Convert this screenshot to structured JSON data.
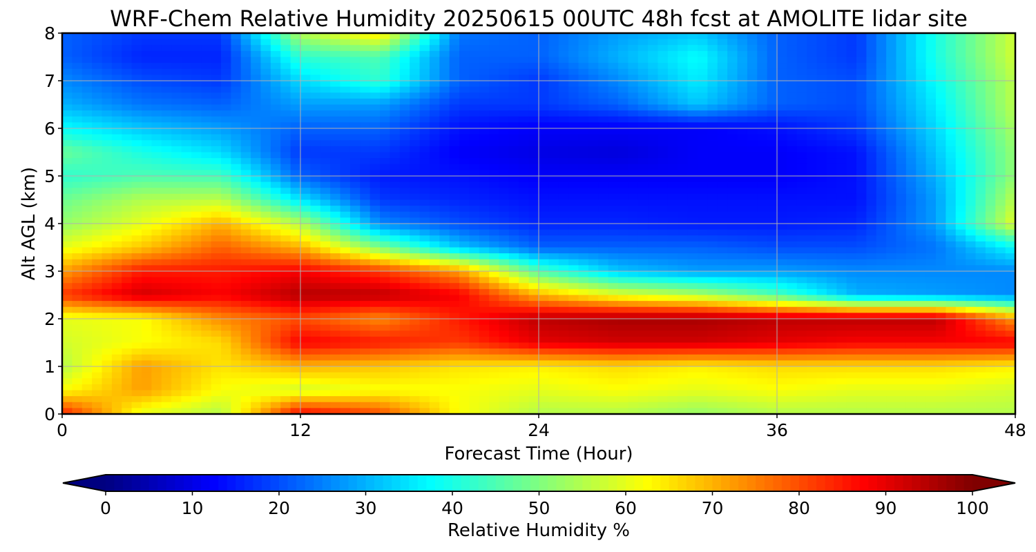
{
  "chart_data": {
    "type": "heatmap",
    "title": "WRF-Chem Relative Humidity 20250615 00UTC 48h fcst at AMOLITE lidar site",
    "xlabel": "Forecast Time (Hour)",
    "ylabel": "Alt AGL (km)",
    "xlim": [
      0,
      48
    ],
    "ylim": [
      0,
      8
    ],
    "xticks": [
      0,
      12,
      24,
      36,
      48
    ],
    "yticks": [
      0,
      1,
      2,
      3,
      4,
      5,
      6,
      7,
      8
    ],
    "grid": true,
    "colormap": "jet",
    "colorbar": {
      "label": "Relative Humidity %",
      "min": 0,
      "max": 100,
      "ticks": [
        0,
        10,
        20,
        30,
        40,
        50,
        60,
        70,
        80,
        90,
        100
      ],
      "extend": "both",
      "orientation": "horizontal"
    },
    "x": [
      0,
      4,
      8,
      12,
      16,
      20,
      24,
      28,
      32,
      36,
      40,
      44,
      48
    ],
    "y": [
      0,
      0.5,
      1,
      1.5,
      2,
      2.5,
      3,
      3.5,
      4,
      4.5,
      5,
      5.5,
      6,
      6.5,
      7,
      7.5,
      8
    ],
    "z": [
      [
        85,
        60,
        55,
        88,
        80,
        62,
        55,
        55,
        52,
        55,
        55,
        55,
        55
      ],
      [
        62,
        72,
        62,
        58,
        62,
        62,
        60,
        62,
        60,
        62,
        60,
        60,
        58
      ],
      [
        55,
        72,
        65,
        70,
        68,
        65,
        64,
        66,
        64,
        66,
        66,
        66,
        64
      ],
      [
        58,
        62,
        66,
        88,
        85,
        82,
        90,
        92,
        92,
        90,
        88,
        88,
        88
      ],
      [
        60,
        62,
        74,
        80,
        74,
        85,
        94,
        96,
        96,
        94,
        94,
        94,
        72
      ],
      [
        82,
        92,
        88,
        95,
        94,
        88,
        70,
        60,
        55,
        45,
        30,
        28,
        26
      ],
      [
        72,
        85,
        85,
        88,
        82,
        72,
        45,
        32,
        28,
        28,
        26,
        26,
        26
      ],
      [
        60,
        68,
        78,
        70,
        50,
        32,
        22,
        22,
        22,
        20,
        20,
        24,
        38
      ],
      [
        52,
        60,
        70,
        55,
        26,
        20,
        16,
        16,
        15,
        15,
        16,
        28,
        60
      ],
      [
        48,
        55,
        56,
        35,
        18,
        16,
        14,
        14,
        14,
        14,
        14,
        28,
        56
      ],
      [
        42,
        45,
        44,
        22,
        15,
        14,
        12,
        12,
        12,
        12,
        14,
        30,
        52
      ],
      [
        48,
        40,
        34,
        18,
        18,
        12,
        10,
        9,
        12,
        12,
        14,
        32,
        52
      ],
      [
        38,
        32,
        28,
        22,
        22,
        14,
        12,
        12,
        12,
        14,
        18,
        34,
        54
      ],
      [
        30,
        24,
        22,
        28,
        28,
        18,
        18,
        22,
        32,
        22,
        20,
        36,
        56
      ],
      [
        26,
        20,
        18,
        34,
        42,
        22,
        18,
        26,
        36,
        22,
        20,
        38,
        56
      ],
      [
        22,
        16,
        16,
        42,
        45,
        22,
        22,
        30,
        38,
        22,
        18,
        40,
        58
      ],
      [
        22,
        18,
        18,
        55,
        65,
        24,
        22,
        28,
        32,
        22,
        18,
        40,
        58
      ]
    ]
  }
}
